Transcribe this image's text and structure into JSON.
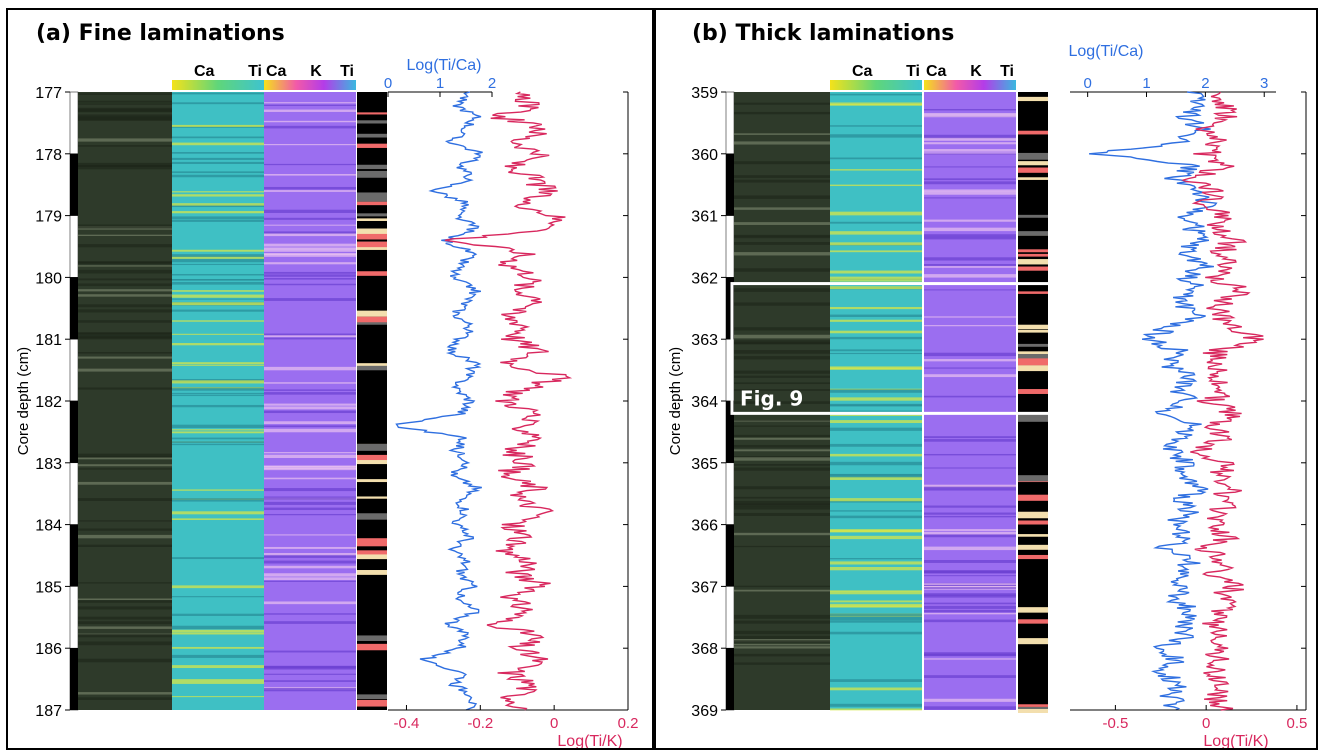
{
  "colors": {
    "ca_ti": "#2f6fe0",
    "ti_k": "#d8285e",
    "annot": "#2f6fe0",
    "annot2": "#d8285e"
  },
  "figure_label": "Fig. 9",
  "chart_data": [
    {
      "type": "line",
      "title": "(a) Fine laminations",
      "ylabel": "Core depth (cm)",
      "ylim": [
        177,
        187
      ],
      "yticks": [
        177,
        178,
        179,
        180,
        181,
        182,
        183,
        184,
        185,
        186,
        187
      ],
      "strip_labels": {
        "map1_left": "Ca",
        "map1_right": "Ti",
        "map2_a": "Ca",
        "map2_b": "K",
        "map2_c": "Ti"
      },
      "series": [
        {
          "name": "Log(Ti/Ca)",
          "axis": "top",
          "xlim": [
            0,
            2
          ],
          "xticks": [
            "0",
            "1",
            "2"
          ],
          "color": "#2f6fe0",
          "depth": [
            177.0,
            177.2,
            177.4,
            177.6,
            177.8,
            178.0,
            178.2,
            178.4,
            178.6,
            178.8,
            179.0,
            179.2,
            179.4,
            179.6,
            179.8,
            180.0,
            180.2,
            180.4,
            180.6,
            180.8,
            181.0,
            181.2,
            181.4,
            181.6,
            181.8,
            182.0,
            182.2,
            182.4,
            182.6,
            182.8,
            183.0,
            183.2,
            183.4,
            183.6,
            183.8,
            184.0,
            184.2,
            184.4,
            184.6,
            184.8,
            185.0,
            185.2,
            185.4,
            185.6,
            185.8,
            186.0,
            186.2,
            186.4,
            186.6,
            186.8,
            187.0
          ],
          "values": [
            1.6,
            1.3,
            1.7,
            1.5,
            1.2,
            1.8,
            1.4,
            1.6,
            0.9,
            1.5,
            1.3,
            1.7,
            1.1,
            1.6,
            1.4,
            1.2,
            1.7,
            1.5,
            1.3,
            1.6,
            1.4,
            1.2,
            1.7,
            1.5,
            1.3,
            1.6,
            1.4,
            0.1,
            1.5,
            1.3,
            1.6,
            1.2,
            1.7,
            1.4,
            1.5,
            1.3,
            1.6,
            1.2,
            1.5,
            1.4,
            1.6,
            1.3,
            1.7,
            1.2,
            1.5,
            1.4,
            0.6,
            1.5,
            1.3,
            1.7,
            1.5
          ]
        },
        {
          "name": "Log(Ti/K)",
          "axis": "bottom",
          "xlim": [
            -0.45,
            0.2
          ],
          "xticks": [
            "-0.4",
            "-0.2",
            "0",
            "0.2"
          ],
          "color": "#d8285e",
          "depth": [
            177.0,
            177.2,
            177.4,
            177.6,
            177.8,
            178.0,
            178.2,
            178.4,
            178.6,
            178.8,
            179.0,
            179.2,
            179.4,
            179.6,
            179.8,
            180.0,
            180.2,
            180.4,
            180.6,
            180.8,
            181.0,
            181.2,
            181.4,
            181.6,
            181.8,
            182.0,
            182.2,
            182.4,
            182.6,
            182.8,
            183.0,
            183.2,
            183.4,
            183.6,
            183.8,
            184.0,
            184.2,
            184.4,
            184.6,
            184.8,
            185.0,
            185.2,
            185.4,
            185.6,
            185.8,
            186.0,
            186.2,
            186.4,
            186.6,
            186.8,
            187.0
          ],
          "values": [
            -0.12,
            -0.05,
            -0.15,
            -0.02,
            -0.1,
            -0.04,
            -0.12,
            -0.06,
            -0.02,
            -0.09,
            0.0,
            0.02,
            -0.28,
            -0.08,
            -0.12,
            -0.05,
            -0.1,
            -0.02,
            -0.14,
            -0.07,
            -0.11,
            -0.04,
            -0.12,
            0.02,
            -0.08,
            -0.13,
            -0.05,
            -0.1,
            -0.03,
            -0.12,
            -0.07,
            -0.14,
            -0.05,
            -0.1,
            -0.02,
            -0.12,
            -0.08,
            -0.15,
            -0.06,
            -0.1,
            -0.03,
            -0.12,
            -0.07,
            -0.16,
            -0.05,
            -0.1,
            -0.04,
            -0.12,
            -0.06,
            -0.11,
            -0.08
          ]
        }
      ],
      "top_axis_label": "Log(Ti/Ca)",
      "bottom_axis_label": "Log(Ti/K)"
    },
    {
      "type": "line",
      "title": "(b) Thick laminations",
      "ylabel": "Core depth (cm)",
      "ylim": [
        359,
        369
      ],
      "yticks": [
        359,
        360,
        361,
        362,
        363,
        364,
        365,
        366,
        367,
        368,
        369
      ],
      "strip_labels": {
        "map1_left": "Ca",
        "map1_right": "Ti",
        "map2_a": "Ca",
        "map2_b": "K",
        "map2_c": "Ti"
      },
      "highlight": {
        "label": "Fig. 9",
        "depth_range": [
          362.1,
          364.2
        ]
      },
      "series": [
        {
          "name": "Log(Ti/Ca)",
          "axis": "top",
          "xlim": [
            -0.3,
            3.2
          ],
          "xticks": [
            "0",
            "1",
            "2",
            "3"
          ],
          "color": "#2f6fe0",
          "depth": [
            359.0,
            359.2,
            359.4,
            359.6,
            359.8,
            360.0,
            360.2,
            360.4,
            360.6,
            360.8,
            361.0,
            361.2,
            361.4,
            361.6,
            361.8,
            362.0,
            362.2,
            362.4,
            362.6,
            362.8,
            363.0,
            363.2,
            363.4,
            363.6,
            363.8,
            364.0,
            364.2,
            364.4,
            364.6,
            364.8,
            365.0,
            365.2,
            365.4,
            365.6,
            365.8,
            366.0,
            366.2,
            366.4,
            366.6,
            366.8,
            367.0,
            367.2,
            367.4,
            367.6,
            367.8,
            368.0,
            368.2,
            368.4,
            368.6,
            368.8,
            369.0
          ],
          "values": [
            1.8,
            2.0,
            1.7,
            1.9,
            1.6,
            0.2,
            1.8,
            1.5,
            1.9,
            2.0,
            1.7,
            1.8,
            1.9,
            1.6,
            2.0,
            1.7,
            1.8,
            1.5,
            1.9,
            1.4,
            1.0,
            1.6,
            1.3,
            1.8,
            1.5,
            1.7,
            1.3,
            1.8,
            1.6,
            1.4,
            1.7,
            1.5,
            1.9,
            1.6,
            1.8,
            1.4,
            1.7,
            1.3,
            1.8,
            1.5,
            1.7,
            1.4,
            1.8,
            1.6,
            1.7,
            1.2,
            1.5,
            1.3,
            1.6,
            1.4,
            1.5
          ]
        },
        {
          "name": "Log(Ti/K)",
          "axis": "bottom",
          "xlim": [
            -0.75,
            0.55
          ],
          "xticks": [
            "-0.5",
            "0",
            "0.5"
          ],
          "color": "#d8285e",
          "depth": [
            359.0,
            359.2,
            359.4,
            359.6,
            359.8,
            360.0,
            360.2,
            360.4,
            360.6,
            360.8,
            361.0,
            361.2,
            361.4,
            361.6,
            361.8,
            362.0,
            362.2,
            362.4,
            362.6,
            362.8,
            363.0,
            363.2,
            363.4,
            363.6,
            363.8,
            364.0,
            364.2,
            364.4,
            364.6,
            364.8,
            365.0,
            365.2,
            365.4,
            365.6,
            365.8,
            366.0,
            366.2,
            366.4,
            366.6,
            366.8,
            367.0,
            367.2,
            367.4,
            367.6,
            367.8,
            368.0,
            368.2,
            368.4,
            368.6,
            368.8,
            369.0
          ],
          "values": [
            0.05,
            0.1,
            0.12,
            -0.05,
            0.08,
            0.0,
            0.1,
            -0.1,
            0.05,
            -0.02,
            0.1,
            0.05,
            0.15,
            0.08,
            0.12,
            0.05,
            0.18,
            0.1,
            0.05,
            0.15,
            0.3,
            0.05,
            0.08,
            0.0,
            0.12,
            0.02,
            0.15,
            0.05,
            0.1,
            -0.05,
            0.12,
            0.05,
            0.15,
            0.08,
            0.1,
            0.05,
            0.12,
            0.0,
            0.1,
            0.05,
            0.15,
            0.08,
            0.1,
            0.02,
            0.12,
            0.05,
            0.08,
            0.02,
            0.1,
            0.05,
            0.08
          ]
        }
      ],
      "top_axis_label": "Log(Ti/Ca)",
      "bottom_axis_label": "Log(Ti/K)"
    }
  ]
}
